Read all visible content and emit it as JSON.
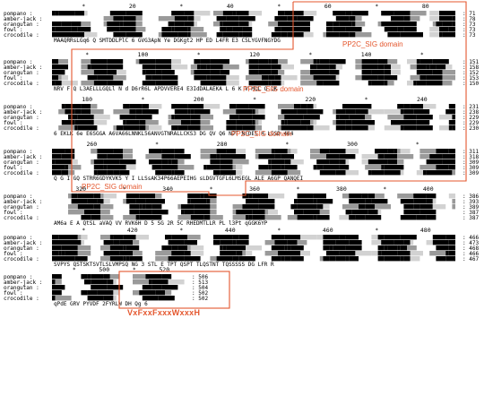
{
  "species": [
    "pompano",
    "amber-jack",
    "orangutan",
    "fowl",
    "crocodile"
  ],
  "colors": {
    "identical": "#000000",
    "similar": "#9a9a9a",
    "weak": "#d2d2d2",
    "domain": "#e4572e"
  },
  "blocks": [
    {
      "ticks": [
        "*",
        "20",
        "*",
        "40",
        "*",
        "60",
        "*",
        "80"
      ],
      "counts": [
        "71",
        "78",
        "73",
        "73",
        "73"
      ],
      "consensus": "MAAQRRsLGq6 Q     SMTDDLPlC  6 GVG3ApN   Ye  DGKgt2 HP ED    L4FR E3  C5LYGVFNGYDG"
    },
    {
      "ticks": [
        "*",
        "100",
        "*",
        "120",
        "*",
        "140",
        "*"
      ],
      "counts": [
        "151",
        "158",
        "152",
        "153",
        "150"
      ],
      "consensus": "NRV  F   Q  L3AELLLGQLl   N d D6rR6L APDVVERE4 E3IdDALAEKA    L   6   K  V  MQL Q QK"
    },
    {
      "ticks": [
        "180",
        "*",
        "200",
        "*",
        "220",
        "*",
        "240"
      ],
      "counts": [
        "231",
        "238",
        "229",
        "229",
        "230"
      ],
      "consensus": "6 EKLK 6e E6SGGA A6VA66LNNKL56ANVGTNRALLCKS3 DG QV Q6 NJT NEDEl R   LGSD  464"
    },
    {
      "ticks": [
        "260",
        "*",
        "280",
        "*",
        "300",
        "*"
      ],
      "counts": [
        "311",
        "318",
        "309",
        "309",
        "309"
      ],
      "consensus": "Q G I GQ STRR6GDYKVK5 Y  I LLSsAK34P66AEPEIHG  sLDGVTGFL6LMSEGL ALE  A6GP QANQEI"
    },
    {
      "ticks": [
        "320",
        "*",
        "340",
        "*",
        "360",
        "*",
        "380",
        "*",
        "400"
      ],
      "counts": [
        "386",
        "393",
        "389",
        "387",
        "387"
      ],
      "consensus": "AM6a E A QtSL aVAQ VV RVK6H D 5 SG 2R 5C RHEDMTLLR   PL     l3Pt   qGGK6YP"
    },
    {
      "ticks": [
        "*",
        "420",
        "*",
        "440",
        "*",
        "460",
        "*",
        "480"
      ],
      "counts": [
        "466",
        "473",
        "468",
        "466",
        "467"
      ],
      "consensus": "SVPYS  QSTSKTSVTLSLVMPSQ  NG  3 STL E TPT   QSPT TLQSTNT TQSSSSS DG LFR R"
    },
    {
      "ticks": [
        "*",
        "500",
        "*",
        "520"
      ],
      "counts": [
        "506",
        "513",
        "504",
        "502",
        "502"
      ],
      "consensus": "qPdE GRV PYVDF 2FYRLW DH  Qg 6"
    }
  ],
  "domains": [
    "PP2C_SIG domain",
    "PP2C_SIG domain",
    "PP2C_SIG domain",
    "PP2C_SIG domain"
  ],
  "motif": "VxFxxFxxxWxxxH"
}
